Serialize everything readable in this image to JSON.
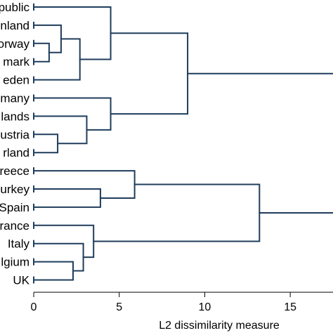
{
  "chart_data": {
    "type": "dendrogram",
    "orientation": "horizontal",
    "xlabel": "L2 dissimilarity measure",
    "xlim": [
      0,
      17.5
    ],
    "xticks": [
      0,
      5,
      10,
      15
    ],
    "line_color": "#1f3d5c",
    "leaves": [
      "Czech Republic",
      "Finland",
      "Norway",
      "Denmark",
      "Sweden",
      "Germany",
      "Netherlands",
      "Austria",
      "Switzerland",
      "Greece",
      "Turkey",
      "Spain",
      "France",
      "Italy",
      "Belgium",
      "UK"
    ],
    "leaf_display_labels": [
      "public",
      "nland",
      "orway",
      "mark",
      "eden",
      "many",
      "lands",
      "ustria",
      "rland",
      "reece",
      "urkey",
      "Spain",
      "rance",
      "Italy",
      "lgium",
      "UK"
    ],
    "merges": [
      {
        "a": "L2",
        "b": "L3",
        "height": 0.9
      },
      {
        "a": "L1",
        "b": "M0",
        "height": 1.6
      },
      {
        "a": "M1",
        "b": "L4",
        "height": 2.7
      },
      {
        "a": "L0",
        "b": "M2",
        "height": 4.5
      },
      {
        "a": "L7",
        "b": "L8",
        "height": 1.4
      },
      {
        "a": "L6",
        "b": "M4",
        "height": 3.1
      },
      {
        "a": "L5",
        "b": "M5",
        "height": 4.5
      },
      {
        "a": "M3",
        "b": "M6",
        "height": 9.0
      },
      {
        "a": "L10",
        "b": "L11",
        "height": 3.9
      },
      {
        "a": "L9",
        "b": "M8",
        "height": 5.9
      },
      {
        "a": "L14",
        "b": "L15",
        "height": 2.3
      },
      {
        "a": "L13",
        "b": "M10",
        "height": 2.9
      },
      {
        "a": "L12",
        "b": "M11",
        "height": 3.5
      },
      {
        "a": "M9",
        "b": "M12",
        "height": 13.2
      },
      {
        "a": "M7",
        "b": "M13",
        "height": 20.0
      }
    ]
  }
}
